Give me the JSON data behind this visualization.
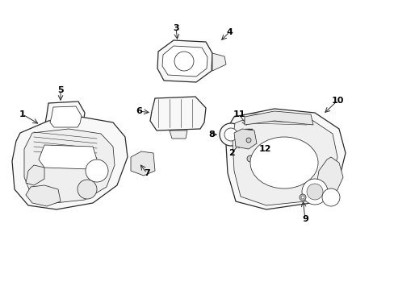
{
  "background_color": "#ffffff",
  "line_color": "#2a2a2a",
  "label_color": "#000000",
  "figsize": [
    4.89,
    3.6
  ],
  "dpi": 100,
  "lw_main": 0.9,
  "lw_thin": 0.55,
  "lw_detail": 0.4
}
